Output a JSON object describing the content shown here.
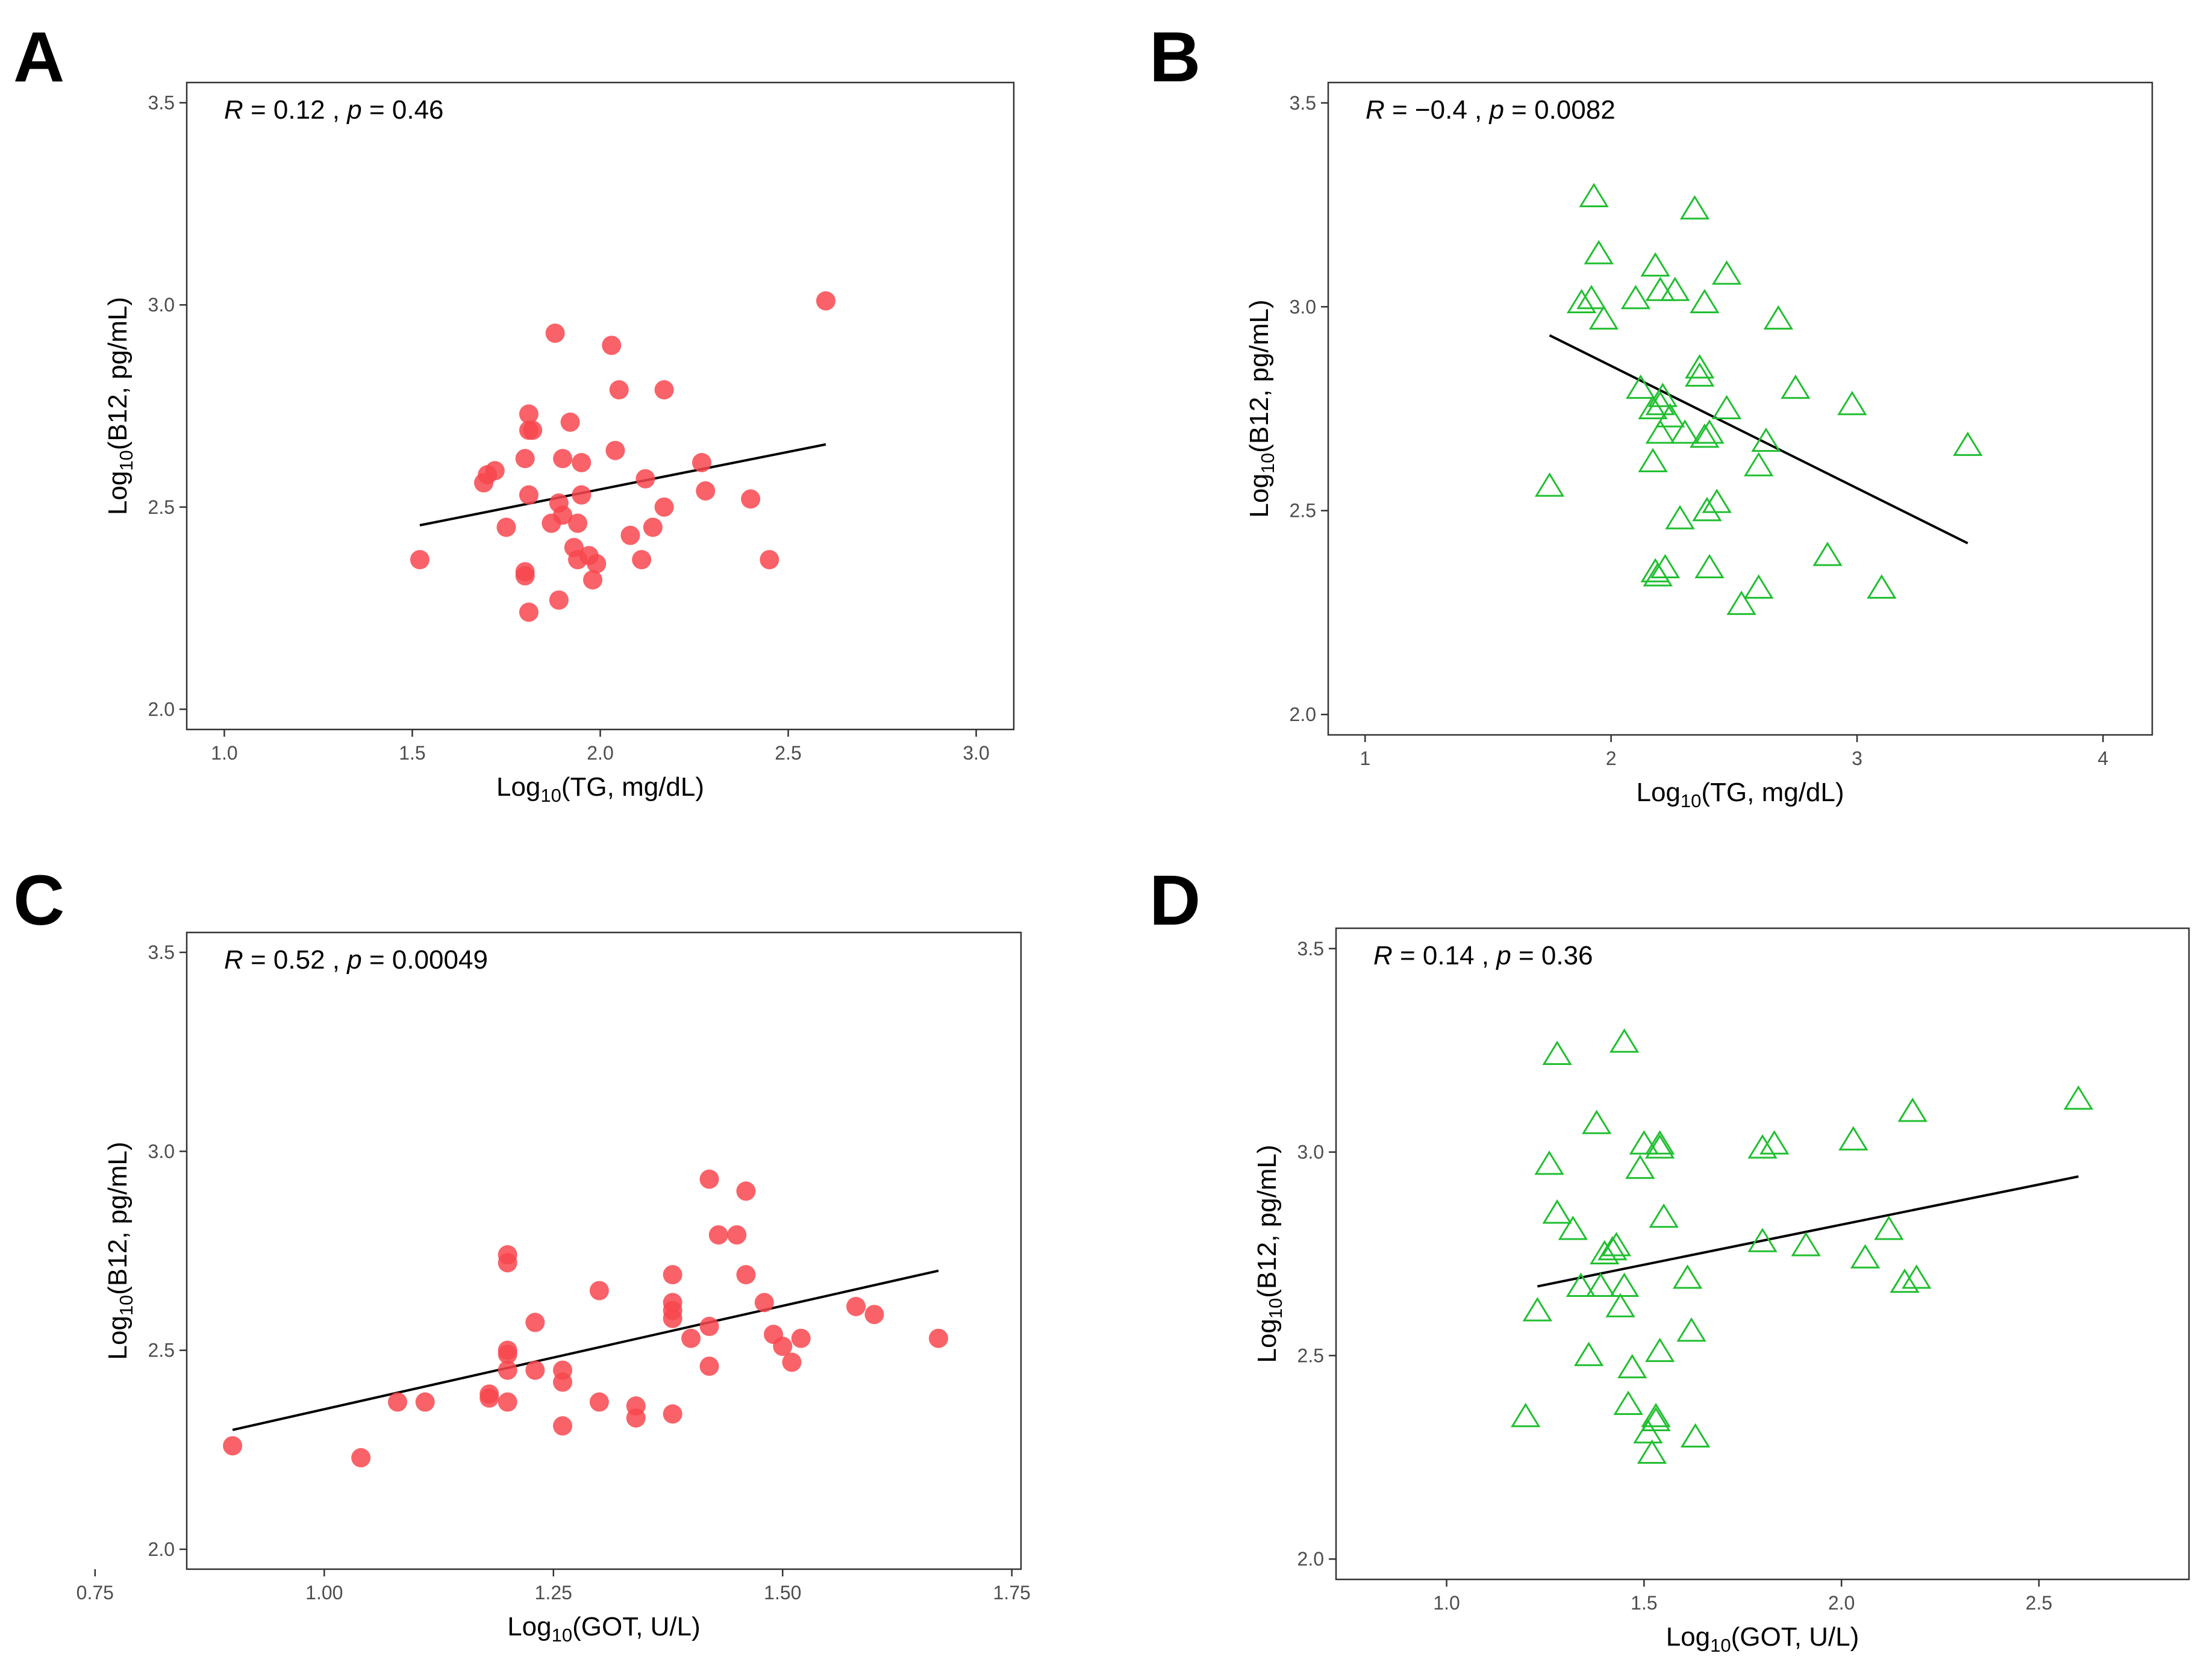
{
  "figure": {
    "marker_colors": {
      "circle": "#F8474D",
      "triangle": "#20BF30"
    }
  },
  "chart_data": [
    {
      "panel": "A",
      "type": "scatter",
      "marker": "circle",
      "color": "#F8474D",
      "annotation": {
        "r_label": "R",
        "r_value": "0.12",
        "sep": " , ",
        "p_label": "p",
        "p_value": "0.46"
      },
      "xlabel": {
        "pre": "Log",
        "sub": "10",
        "post": "(TG, mg/dL)"
      },
      "ylabel": {
        "pre": "Log",
        "sub": "10",
        "post": "(B12, pg/mL)"
      },
      "xlim": [
        0.9,
        3.1
      ],
      "ylim": [
        1.95,
        3.55
      ],
      "xticks": [
        1.0,
        1.5,
        2.0,
        2.5,
        3.0
      ],
      "xtick_labels": [
        "1.0",
        "1.5",
        "2.0",
        "2.5",
        "3.0"
      ],
      "yticks": [
        2.0,
        2.5,
        3.0,
        3.5
      ],
      "ytick_labels": [
        "2.0",
        "2.5",
        "3.0",
        "3.5"
      ],
      "fit_line": {
        "x": [
          1.52,
          2.6
        ],
        "y": [
          2.455,
          2.655
        ]
      },
      "points": [
        [
          1.52,
          2.37
        ],
        [
          1.69,
          2.56
        ],
        [
          1.7,
          2.58
        ],
        [
          1.72,
          2.59
        ],
        [
          1.75,
          2.45
        ],
        [
          1.8,
          2.34
        ],
        [
          1.8,
          2.33
        ],
        [
          1.8,
          2.62
        ],
        [
          1.81,
          2.69
        ],
        [
          1.81,
          2.73
        ],
        [
          1.82,
          2.69
        ],
        [
          1.81,
          2.53
        ],
        [
          1.81,
          2.24
        ],
        [
          1.88,
          2.93
        ],
        [
          1.87,
          2.46
        ],
        [
          1.89,
          2.27
        ],
        [
          1.89,
          2.51
        ],
        [
          1.9,
          2.62
        ],
        [
          1.9,
          2.48
        ],
        [
          1.92,
          2.71
        ],
        [
          1.93,
          2.4
        ],
        [
          1.94,
          2.37
        ],
        [
          1.94,
          2.46
        ],
        [
          1.95,
          2.61
        ],
        [
          1.95,
          2.53
        ],
        [
          1.97,
          2.38
        ],
        [
          1.98,
          2.32
        ],
        [
          1.99,
          2.36
        ],
        [
          2.03,
          2.9
        ],
        [
          2.04,
          2.64
        ],
        [
          2.05,
          2.79
        ],
        [
          2.08,
          2.43
        ],
        [
          2.11,
          2.37
        ],
        [
          2.12,
          2.57
        ],
        [
          2.14,
          2.45
        ],
        [
          2.17,
          2.79
        ],
        [
          2.17,
          2.5
        ],
        [
          2.27,
          2.61
        ],
        [
          2.28,
          2.54
        ],
        [
          2.4,
          2.52
        ],
        [
          2.45,
          2.37
        ],
        [
          2.6,
          3.01
        ]
      ]
    },
    {
      "panel": "B",
      "type": "scatter",
      "marker": "triangle",
      "color": "#20BF30",
      "annotation": {
        "r_label": "R",
        "r_value": "−0.4",
        "sep": " , ",
        "p_label": "p",
        "p_value": "0.0082"
      },
      "xlabel": {
        "pre": "Log",
        "sub": "10",
        "post": "(TG, mg/dL)"
      },
      "ylabel": {
        "pre": "Log",
        "sub": "10",
        "post": "(B12, pg/mL)"
      },
      "xlim": [
        0.85,
        4.2
      ],
      "ylim": [
        1.95,
        3.55
      ],
      "xticks": [
        1,
        2,
        3,
        4
      ],
      "xtick_labels": [
        "1",
        "2",
        "3",
        "4"
      ],
      "yticks": [
        2.0,
        2.5,
        3.0,
        3.5
      ],
      "ytick_labels": [
        "2.0",
        "2.5",
        "3.0",
        "3.5"
      ],
      "fit_line": {
        "x": [
          1.75,
          3.45
        ],
        "y": [
          2.93,
          2.42
        ]
      },
      "points": [
        [
          1.75,
          2.56
        ],
        [
          1.88,
          3.01
        ],
        [
          1.92,
          3.02
        ],
        [
          1.93,
          3.27
        ],
        [
          1.95,
          3.13
        ],
        [
          1.97,
          2.97
        ],
        [
          2.1,
          3.02
        ],
        [
          2.12,
          2.8
        ],
        [
          2.17,
          2.75
        ],
        [
          2.17,
          2.62
        ],
        [
          2.18,
          3.1
        ],
        [
          2.18,
          2.35
        ],
        [
          2.19,
          2.34
        ],
        [
          2.2,
          2.69
        ],
        [
          2.2,
          3.04
        ],
        [
          2.2,
          2.76
        ],
        [
          2.21,
          2.78
        ],
        [
          2.22,
          2.36
        ],
        [
          2.24,
          2.73
        ],
        [
          2.26,
          3.04
        ],
        [
          2.28,
          2.48
        ],
        [
          2.3,
          2.69
        ],
        [
          2.34,
          3.24
        ],
        [
          2.36,
          2.85
        ],
        [
          2.36,
          2.83
        ],
        [
          2.38,
          3.01
        ],
        [
          2.38,
          2.68
        ],
        [
          2.39,
          2.5
        ],
        [
          2.4,
          2.69
        ],
        [
          2.4,
          2.36
        ],
        [
          2.43,
          2.52
        ],
        [
          2.47,
          3.08
        ],
        [
          2.47,
          2.75
        ],
        [
          2.53,
          2.27
        ],
        [
          2.6,
          2.31
        ],
        [
          2.6,
          2.61
        ],
        [
          2.63,
          2.67
        ],
        [
          2.68,
          2.97
        ],
        [
          2.75,
          2.8
        ],
        [
          2.88,
          2.39
        ],
        [
          2.98,
          2.76
        ],
        [
          3.1,
          2.31
        ],
        [
          3.45,
          2.66
        ]
      ]
    },
    {
      "panel": "C",
      "type": "scatter",
      "marker": "circle",
      "color": "#F8474D",
      "annotation": {
        "r_label": "R",
        "r_value": "0.52",
        "sep": " , ",
        "p_label": "p",
        "p_value": "0.00049"
      },
      "xlabel": {
        "pre": "Log",
        "sub": "10",
        "post": "(GOT, U/L)"
      },
      "ylabel": {
        "pre": "Log",
        "sub": "10",
        "post": "(B12, pg/mL)"
      },
      "xlim": [
        0.85,
        1.76
      ],
      "ylim": [
        1.95,
        3.55
      ],
      "xticks": [
        0.75,
        1.0,
        1.25,
        1.5,
        1.75
      ],
      "xtick_labels": [
        "0.75",
        "1.00",
        "1.25",
        "1.50",
        "1.75"
      ],
      "yticks": [
        2.0,
        2.5,
        3.0,
        3.5
      ],
      "ytick_labels": [
        "2.0",
        "2.5",
        "3.0",
        "3.5"
      ],
      "fit_line": {
        "x": [
          0.9,
          1.67
        ],
        "y": [
          2.3,
          2.7
        ]
      },
      "points": [
        [
          0.9,
          2.26
        ],
        [
          1.04,
          2.23
        ],
        [
          1.08,
          2.37
        ],
        [
          1.11,
          2.37
        ],
        [
          1.18,
          2.39
        ],
        [
          1.18,
          2.38
        ],
        [
          1.2,
          2.74
        ],
        [
          1.2,
          2.72
        ],
        [
          1.2,
          2.5
        ],
        [
          1.2,
          2.49
        ],
        [
          1.2,
          2.45
        ],
        [
          1.2,
          2.37
        ],
        [
          1.23,
          2.57
        ],
        [
          1.23,
          2.45
        ],
        [
          1.26,
          2.45
        ],
        [
          1.26,
          2.42
        ],
        [
          1.26,
          2.31
        ],
        [
          1.3,
          2.65
        ],
        [
          1.3,
          2.37
        ],
        [
          1.34,
          2.36
        ],
        [
          1.34,
          2.33
        ],
        [
          1.38,
          2.69
        ],
        [
          1.38,
          2.62
        ],
        [
          1.38,
          2.6
        ],
        [
          1.38,
          2.58
        ],
        [
          1.38,
          2.34
        ],
        [
          1.4,
          2.53
        ],
        [
          1.42,
          2.93
        ],
        [
          1.42,
          2.56
        ],
        [
          1.42,
          2.46
        ],
        [
          1.43,
          2.79
        ],
        [
          1.45,
          2.79
        ],
        [
          1.46,
          2.9
        ],
        [
          1.46,
          2.69
        ],
        [
          1.48,
          2.62
        ],
        [
          1.49,
          2.54
        ],
        [
          1.5,
          2.51
        ],
        [
          1.51,
          2.47
        ],
        [
          1.52,
          2.53
        ],
        [
          1.58,
          2.61
        ],
        [
          1.6,
          2.59
        ],
        [
          1.67,
          2.53
        ]
      ]
    },
    {
      "panel": "D",
      "type": "scatter",
      "marker": "triangle",
      "color": "#20BF30",
      "annotation": {
        "r_label": "R",
        "r_value": "0.14",
        "sep": " , ",
        "p_label": "p",
        "p_value": "0.36"
      },
      "xlabel": {
        "pre": "Log",
        "sub": "10",
        "post": "(GOT, U/L)"
      },
      "ylabel": {
        "pre": "Log",
        "sub": "10",
        "post": "(B12, pg/mL)"
      },
      "xlim": [
        0.72,
        2.88
      ],
      "ylim": [
        1.95,
        3.55
      ],
      "xticks": [
        1.0,
        1.5,
        2.0,
        2.5
      ],
      "xtick_labels": [
        "1.0",
        "1.5",
        "2.0",
        "2.5"
      ],
      "yticks": [
        2.0,
        2.5,
        3.0,
        3.5
      ],
      "ytick_labels": [
        "2.0",
        "2.5",
        "3.0",
        "3.5"
      ],
      "fit_line": {
        "x": [
          1.23,
          2.6
        ],
        "y": [
          2.67,
          2.94
        ]
      },
      "points": [
        [
          1.2,
          2.35
        ],
        [
          1.23,
          2.61
        ],
        [
          1.26,
          2.97
        ],
        [
          1.28,
          3.24
        ],
        [
          1.28,
          2.85
        ],
        [
          1.32,
          2.81
        ],
        [
          1.34,
          2.67
        ],
        [
          1.36,
          2.5
        ],
        [
          1.38,
          3.07
        ],
        [
          1.39,
          2.67
        ],
        [
          1.4,
          2.75
        ],
        [
          1.42,
          2.76
        ],
        [
          1.43,
          2.77
        ],
        [
          1.44,
          2.62
        ],
        [
          1.45,
          3.27
        ],
        [
          1.45,
          2.67
        ],
        [
          1.46,
          2.38
        ],
        [
          1.47,
          2.47
        ],
        [
          1.49,
          2.96
        ],
        [
          1.5,
          3.02
        ],
        [
          1.51,
          2.31
        ],
        [
          1.52,
          2.26
        ],
        [
          1.53,
          2.34
        ],
        [
          1.53,
          2.35
        ],
        [
          1.54,
          3.01
        ],
        [
          1.54,
          3.02
        ],
        [
          1.54,
          2.51
        ],
        [
          1.55,
          2.84
        ],
        [
          1.61,
          2.69
        ],
        [
          1.62,
          2.56
        ],
        [
          1.63,
          2.3
        ],
        [
          1.8,
          3.01
        ],
        [
          1.8,
          2.78
        ],
        [
          1.83,
          3.02
        ],
        [
          1.91,
          2.77
        ],
        [
          2.03,
          3.03
        ],
        [
          2.06,
          2.74
        ],
        [
          2.12,
          2.81
        ],
        [
          2.16,
          2.68
        ],
        [
          2.18,
          3.1
        ],
        [
          2.19,
          2.69
        ],
        [
          2.6,
          3.13
        ]
      ]
    }
  ]
}
